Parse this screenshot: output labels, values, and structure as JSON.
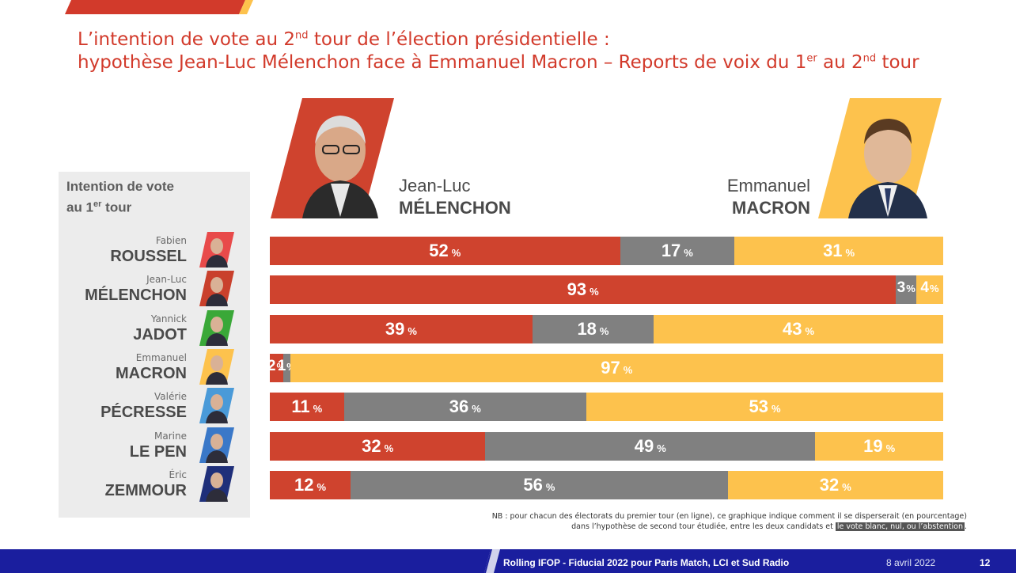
{
  "title": {
    "line1_a": "L’intention de vote au 2",
    "line1_sup": "nd",
    "line1_b": " tour de l’élection présidentielle :",
    "line2_a": "hypothèse Jean-Luc Mélenchon face à Emmanuel Macron – Reports de voix du 1",
    "line2_sup1": "er",
    "line2_b": " au 2",
    "line2_sup2": "nd",
    "line2_c": " tour"
  },
  "left_heading": {
    "line1": "Intention de vote",
    "line2_a": "au 1",
    "line2_sup": "er",
    "line2_b": " tour"
  },
  "candidates_header": {
    "left": {
      "first": "Jean-Luc",
      "last": "MÉLENCHON"
    },
    "right": {
      "first": "Emmanuel",
      "last": "MACRON"
    }
  },
  "colors": {
    "melenchon": "#cf432e",
    "neutral": "#808080",
    "macron": "#fdc24d",
    "title": "#d23a2b",
    "footer": "#1a1e9e"
  },
  "chart_data": {
    "type": "bar",
    "orientation": "horizontal-stacked-100",
    "unit": "%",
    "categories": [
      {
        "first": "Fabien",
        "last": "ROUSSEL"
      },
      {
        "first": "Jean-Luc",
        "last": "MÉLENCHON"
      },
      {
        "first": "Yannick",
        "last": "JADOT"
      },
      {
        "first": "Emmanuel",
        "last": "MACRON"
      },
      {
        "first": "Valérie",
        "last": "PÉCRESSE"
      },
      {
        "first": "Marine",
        "last": "LE PEN"
      },
      {
        "first": "Éric",
        "last": "ZEMMOUR"
      }
    ],
    "series": [
      {
        "name": "Jean-Luc MÉLENCHON",
        "values": [
          52,
          93,
          39,
          2,
          11,
          32,
          12
        ]
      },
      {
        "values": [
          17,
          3,
          18,
          1,
          36,
          49,
          56
        ]
      },
      {
        "name": "Emmanuel MACRON",
        "values": [
          31,
          4,
          43,
          97,
          53,
          19,
          32
        ]
      }
    ],
    "xlim": [
      0,
      100
    ]
  },
  "note": {
    "line1": "NB : pour chacun des électorats du premier tour (en ligne), ce graphique indique comment il se disperserait (en pourcentage)",
    "line2": "dans l’hypothèse de second tour étudiée, entre les deux candidats et ",
    "line2_highlight": "le vote blanc, nul, ou l’abstention",
    "line2_end": "."
  },
  "footer": {
    "source": "Rolling IFOP - Fiducial 2022 pour Paris Match, LCI et Sud Radio",
    "date": "8 avril 2022",
    "page": "12"
  }
}
